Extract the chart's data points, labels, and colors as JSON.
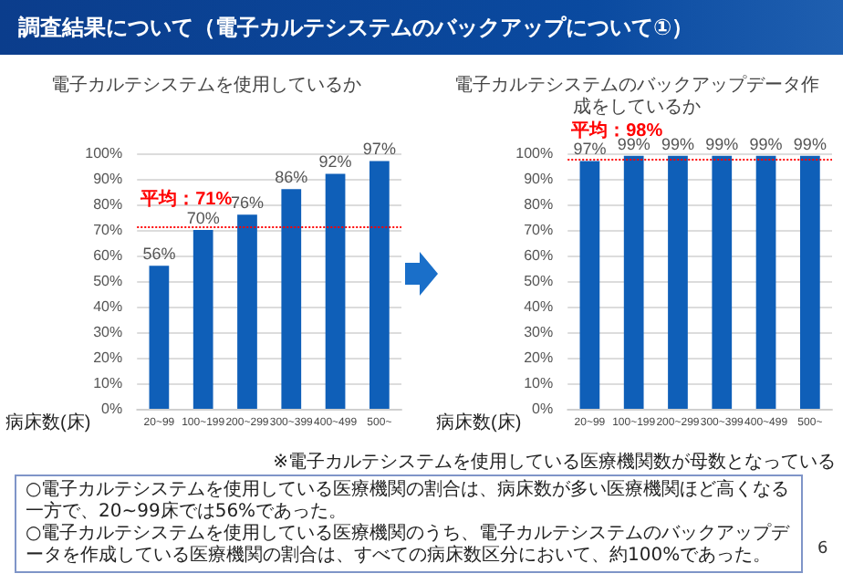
{
  "chart_data": [
    {
      "type": "bar",
      "title": "電子カルテシステムを使用しているか",
      "xlabel": "病床数(床)",
      "categories": [
        "20~99",
        "100~199",
        "200~299",
        "300~399",
        "400~499",
        "500~"
      ],
      "series": [
        {
          "color": "#0f5fb8",
          "values": [
            56,
            70,
            76,
            86,
            92,
            97
          ],
          "value_labels": [
            "56%",
            "70%",
            "76%",
            "86%",
            "92%",
            "97%"
          ]
        }
      ],
      "ylim": [
        0,
        100
      ],
      "yticks": [
        {
          "value": 0,
          "label": "0%"
        },
        {
          "value": 10,
          "label": "10%"
        },
        {
          "value": 20,
          "label": "20%"
        },
        {
          "value": 30,
          "label": "30%"
        },
        {
          "value": 40,
          "label": "40%"
        },
        {
          "value": 50,
          "label": "50%"
        },
        {
          "value": 60,
          "label": "60%"
        },
        {
          "value": 70,
          "label": "70%"
        },
        {
          "value": 80,
          "label": "80%"
        },
        {
          "value": 90,
          "label": "90%"
        },
        {
          "value": 100,
          "label": "100%"
        }
      ],
      "grid": "y",
      "ref_lines": [
        {
          "axis": "y",
          "value": 71,
          "label": "平均：71%",
          "color": "#ff0000",
          "line_style": "dotted"
        }
      ]
    },
    {
      "type": "bar",
      "title": "電子カルテシステムのバックアップデータ作成をしているか",
      "xlabel": "病床数(床)",
      "categories": [
        "20~99",
        "100~199",
        "200~299",
        "300~399",
        "400~499",
        "500~"
      ],
      "series": [
        {
          "color": "#0f5fb8",
          "values": [
            97,
            99,
            99,
            99,
            99,
            99
          ],
          "value_labels": [
            "97%",
            "99%",
            "99%",
            "99%",
            "99%",
            "99%"
          ]
        }
      ],
      "ylim": [
        0,
        100
      ],
      "yticks": [
        {
          "value": 0,
          "label": "0%"
        },
        {
          "value": 10,
          "label": "10%"
        },
        {
          "value": 20,
          "label": "20%"
        },
        {
          "value": 30,
          "label": "30%"
        },
        {
          "value": 40,
          "label": "40%"
        },
        {
          "value": 50,
          "label": "50%"
        },
        {
          "value": 60,
          "label": "60%"
        },
        {
          "value": 70,
          "label": "70%"
        },
        {
          "value": 80,
          "label": "80%"
        },
        {
          "value": 90,
          "label": "90%"
        },
        {
          "value": 100,
          "label": "100%"
        }
      ],
      "grid": "y",
      "ref_lines": [
        {
          "axis": "y",
          "value": 98,
          "label": "平均：98%",
          "color": "#ff0000",
          "line_style": "dotted"
        }
      ],
      "annotations": [
        "※電子カルテシステムを使用している医療機関数が母数となっている"
      ]
    },
    {
      "type": "other",
      "title": "調査結果について（電子カルテシステムのバックアップについて①）",
      "annotations": [
        "○電子カルテシステムを使用している医療機関の割合は、病床数が多い医療機関ほど高くなる一方で、20~99床では56%であった。",
        "○電子カルテシステムを使用している医療機関のうち、電子カルテシステムのバックアップデータを作成している医療機関の割合は、すべての病床数区分において、約100%であった。",
        "6"
      ]
    }
  ]
}
